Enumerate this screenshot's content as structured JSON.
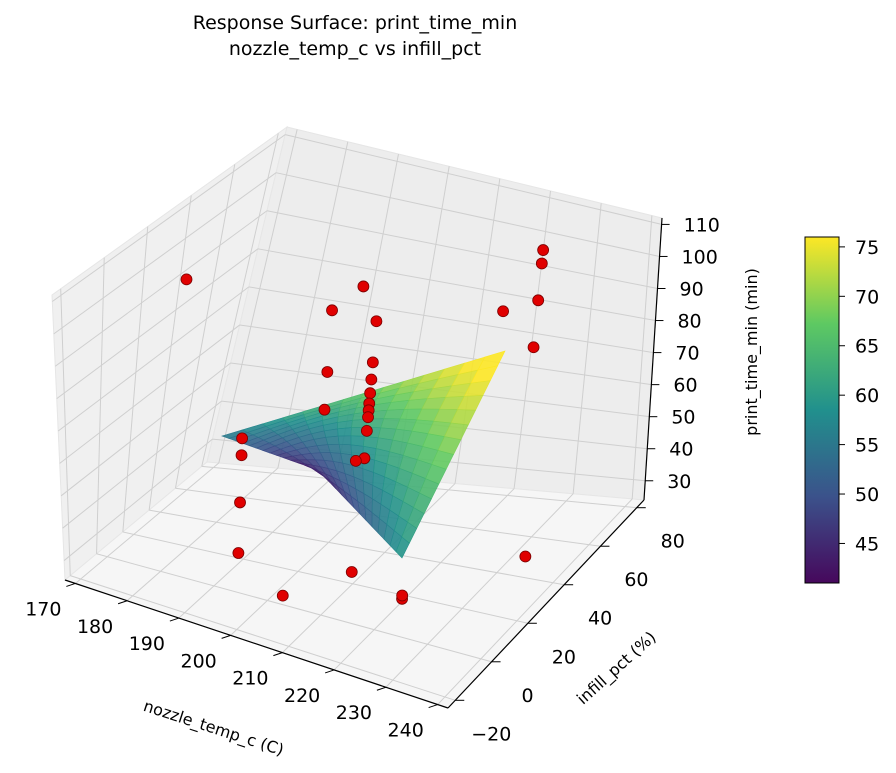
{
  "chart_data": {
    "type": "surface3d+scatter",
    "title_line1": "Response Surface: print_time_min",
    "title_line2": "nozzle_temp_c vs infill_pct",
    "xlabel": "nozzle_temp_c (C)",
    "ylabel": "infill_pct (%)",
    "zlabel": "print_time_min (min)",
    "x_ticks": [
      "170",
      "180",
      "190",
      "200",
      "210",
      "220",
      "230",
      "240"
    ],
    "y_ticks": [
      "−20",
      "0",
      "20",
      "40",
      "60",
      "80"
    ],
    "z_ticks": [
      "30",
      "40",
      "50",
      "60",
      "70",
      "80",
      "90",
      "100",
      "110"
    ],
    "xlim": [
      168,
      242
    ],
    "ylim": [
      -24,
      84
    ],
    "zlim": [
      24,
      112
    ],
    "colorbar": {
      "ticks": [
        "45",
        "50",
        "55",
        "60",
        "65",
        "70",
        "75"
      ],
      "range": [
        41,
        76
      ],
      "colormap": "viridis"
    },
    "surface_fit": {
      "x_range": [
        180,
        230
      ],
      "y_range": [
        10,
        75
      ]
    },
    "points": [
      {
        "x": 176,
        "y": 20,
        "z": 100
      },
      {
        "x": 193,
        "y": 5,
        "z": 67
      },
      {
        "x": 193,
        "y": 5,
        "z": 62
      },
      {
        "x": 193,
        "y": 5,
        "z": 48
      },
      {
        "x": 193,
        "y": 5,
        "z": 33
      },
      {
        "x": 202,
        "y": 3,
        "z": 25
      },
      {
        "x": 200,
        "y": 30,
        "z": 96
      },
      {
        "x": 202,
        "y": 40,
        "z": 99
      },
      {
        "x": 205,
        "y": 40,
        "z": 90
      },
      {
        "x": 200,
        "y": 30,
        "z": 78
      },
      {
        "x": 205,
        "y": 40,
        "z": 78
      },
      {
        "x": 205,
        "y": 40,
        "z": 73
      },
      {
        "x": 205,
        "y": 40,
        "z": 69
      },
      {
        "x": 205,
        "y": 40,
        "z": 66
      },
      {
        "x": 205,
        "y": 40,
        "z": 64
      },
      {
        "x": 205,
        "y": 40,
        "z": 62
      },
      {
        "x": 205,
        "y": 40,
        "z": 58
      },
      {
        "x": 205,
        "y": 40,
        "z": 50
      },
      {
        "x": 200,
        "y": 30,
        "z": 67
      },
      {
        "x": 212,
        "y": 12,
        "z": 65
      },
      {
        "x": 212,
        "y": 12,
        "z": 32
      },
      {
        "x": 224,
        "y": 72,
        "z": 98
      },
      {
        "x": 224,
        "y": 72,
        "z": 102
      },
      {
        "x": 220,
        "y": 65,
        "z": 86
      },
      {
        "x": 224,
        "y": 72,
        "z": 87
      },
      {
        "x": 224,
        "y": 72,
        "z": 73
      },
      {
        "x": 238,
        "y": 30,
        "z": 37
      },
      {
        "x": 222,
        "y": 10,
        "z": 29
      },
      {
        "x": 222,
        "y": 10,
        "z": 30
      }
    ]
  }
}
